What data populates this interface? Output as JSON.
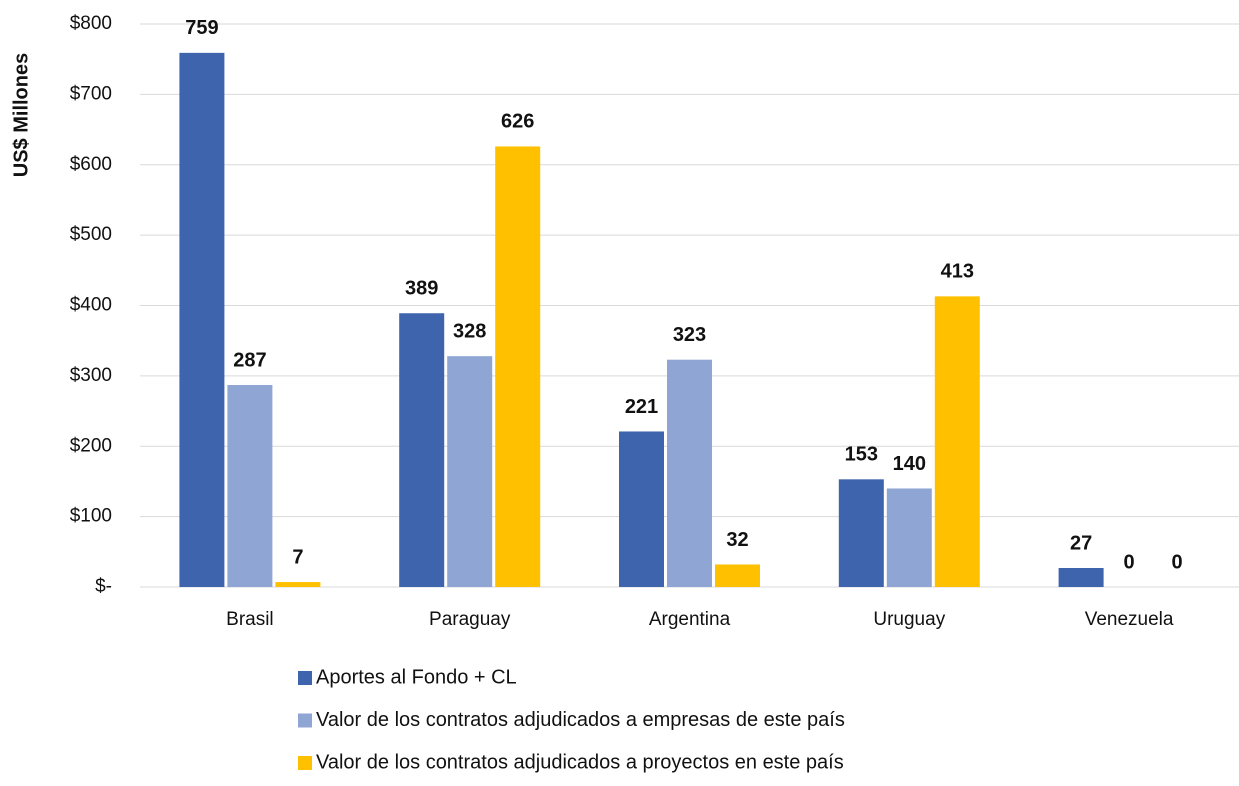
{
  "chart_data": {
    "type": "bar",
    "ylabel": "US$ Millones",
    "categories": [
      "Brasil",
      "Paraguay",
      "Argentina",
      "Uruguay",
      "Venezuela"
    ],
    "series": [
      {
        "name": "Aportes al Fondo + CL",
        "color": "#3d64ad",
        "values": [
          759,
          389,
          221,
          153,
          27
        ]
      },
      {
        "name": "Valor de los contratos adjudicados a empresas de este país",
        "color": "#8fa6d4",
        "values": [
          287,
          328,
          323,
          140,
          0
        ]
      },
      {
        "name": "Valor de los contratos adjudicados a proyectos en este país",
        "color": "#ffc000",
        "values": [
          7,
          626,
          32,
          413,
          0
        ]
      }
    ],
    "ylim": [
      0,
      800
    ],
    "yticks": [
      {
        "value": 0,
        "label": "$-"
      },
      {
        "value": 100,
        "label": "$100"
      },
      {
        "value": 200,
        "label": "$200"
      },
      {
        "value": 300,
        "label": "$300"
      },
      {
        "value": 400,
        "label": "$400"
      },
      {
        "value": 500,
        "label": "$500"
      },
      {
        "value": 600,
        "label": "$600"
      },
      {
        "value": 700,
        "label": "$700"
      },
      {
        "value": 800,
        "label": "$800"
      }
    ],
    "grid": true,
    "legend": "bottom"
  }
}
